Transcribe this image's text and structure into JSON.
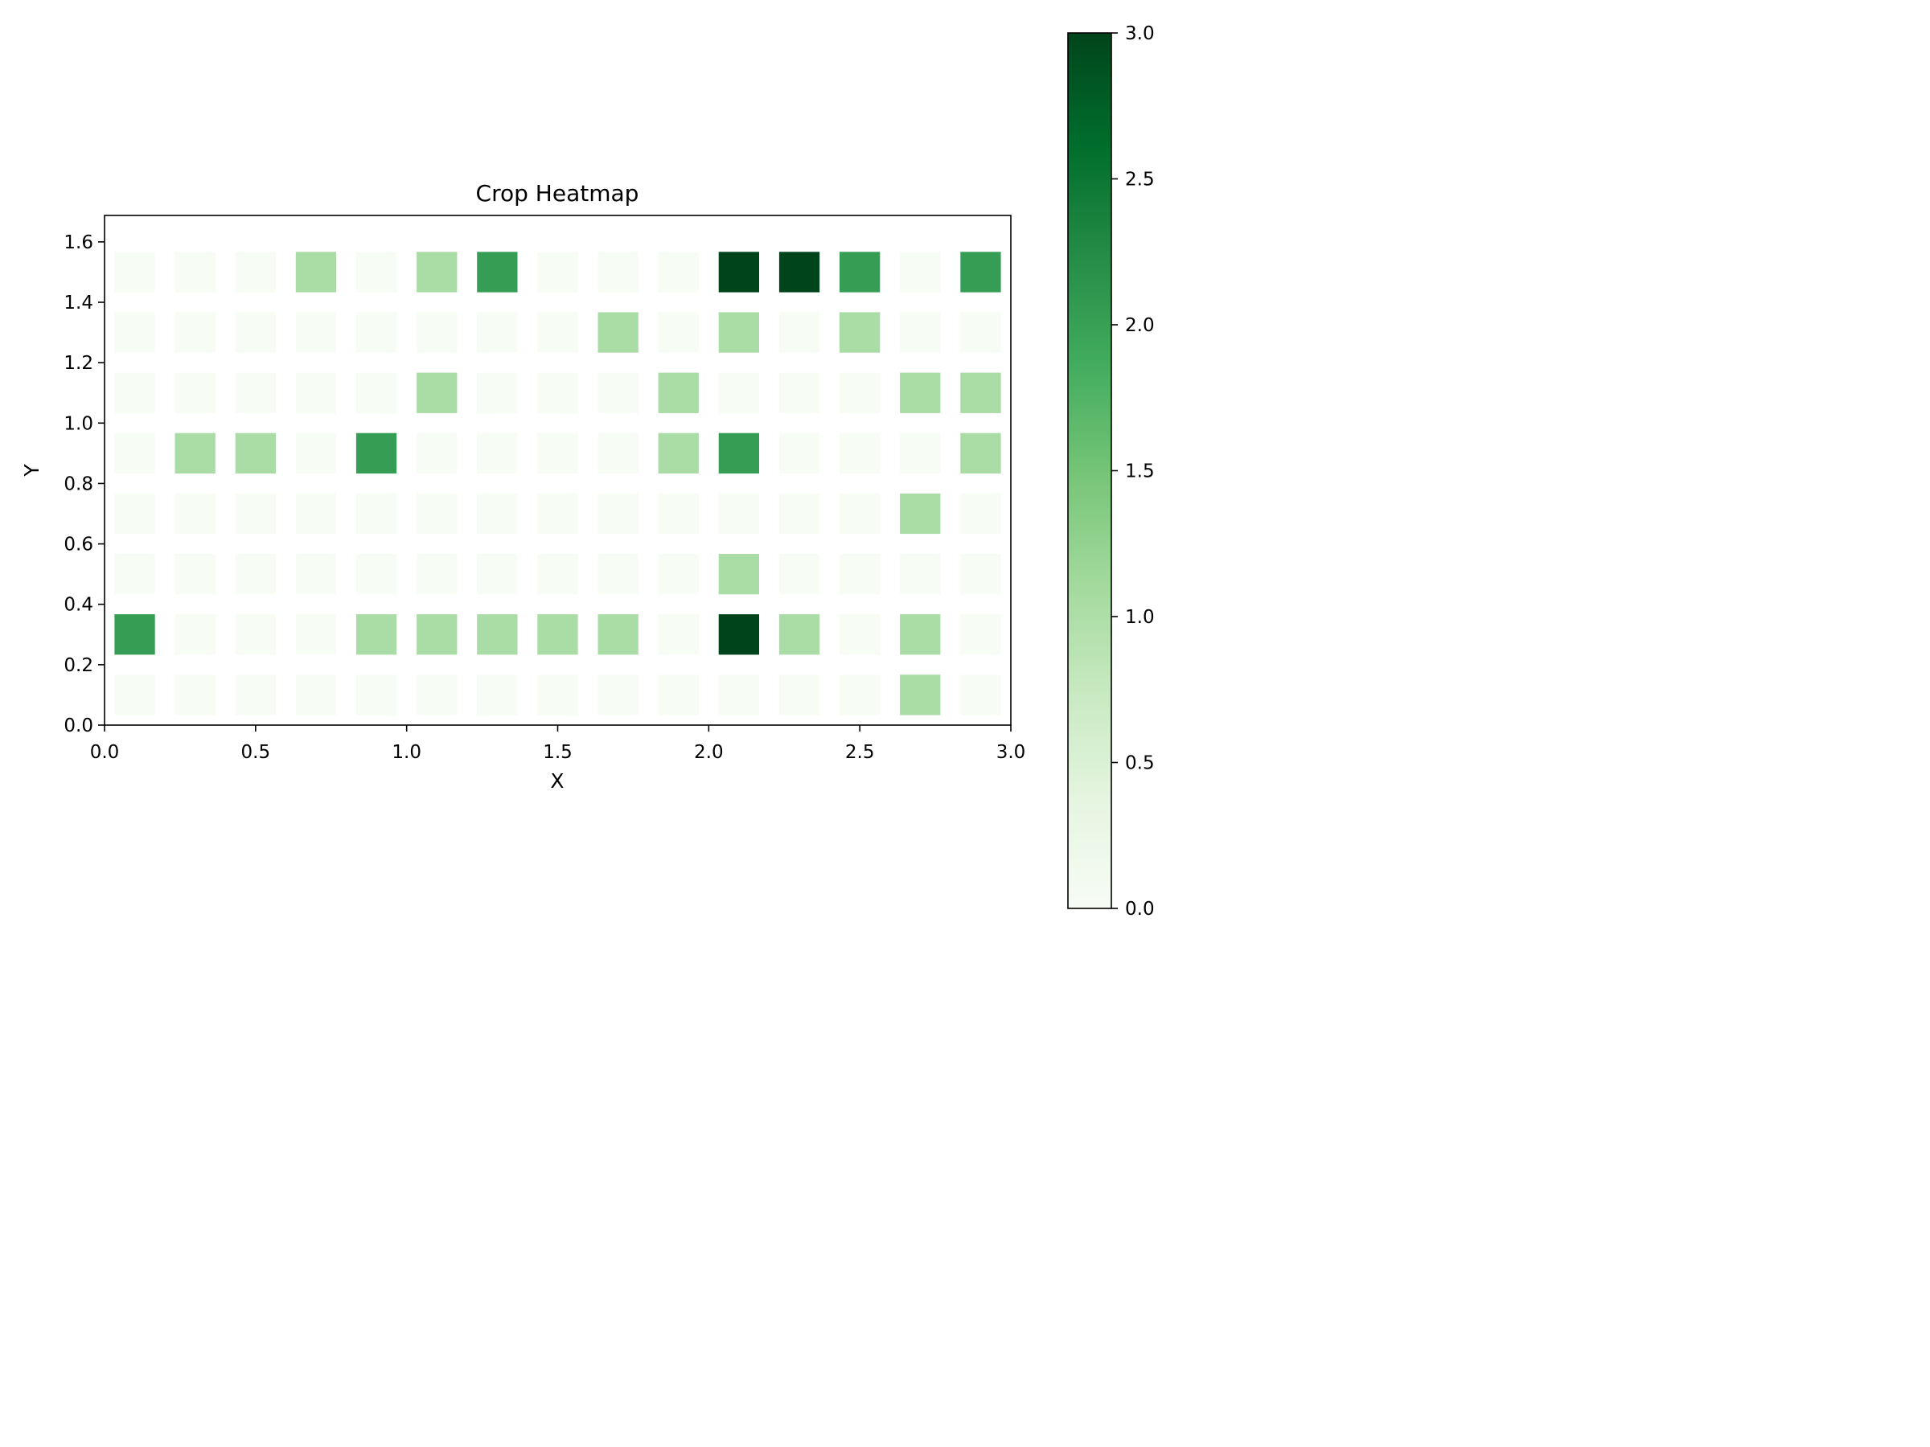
{
  "chart_data": {
    "type": "heatmap",
    "title": "Crop Heatmap",
    "xlabel": "X",
    "ylabel": "Y",
    "xlim": [
      0.0,
      3.0
    ],
    "ylim": [
      0.0,
      1.6875
    ],
    "x_ticks": [
      "0.0",
      "0.5",
      "1.0",
      "1.5",
      "2.0",
      "2.5",
      "3.0"
    ],
    "y_ticks": [
      "0.0",
      "0.2",
      "0.4",
      "0.6",
      "0.8",
      "1.0",
      "1.2",
      "1.4",
      "1.6"
    ],
    "x": [
      0.1,
      0.3,
      0.5,
      0.7,
      0.9,
      1.1,
      1.3,
      1.5,
      1.7,
      1.9,
      2.1,
      2.3,
      2.5,
      2.7,
      2.9
    ],
    "y": [
      0.1,
      0.3,
      0.5,
      0.7,
      0.9,
      1.1,
      1.3,
      1.5
    ],
    "values": [
      [
        0,
        0,
        0,
        0,
        0,
        0,
        0,
        0,
        0,
        0,
        0,
        0,
        0,
        1,
        0
      ],
      [
        2,
        0,
        0,
        0,
        1,
        1,
        1,
        1,
        1,
        0,
        3,
        1,
        0,
        1,
        0
      ],
      [
        0,
        0,
        0,
        0,
        0,
        0,
        0,
        0,
        0,
        0,
        1,
        0,
        0,
        0,
        0
      ],
      [
        0,
        0,
        0,
        0,
        0,
        0,
        0,
        0,
        0,
        0,
        0,
        0,
        0,
        1,
        0
      ],
      [
        0,
        1,
        1,
        0,
        2,
        0,
        0,
        0,
        0,
        1,
        2,
        0,
        0,
        0,
        1
      ],
      [
        0,
        0,
        0,
        0,
        0,
        1,
        0,
        0,
        0,
        1,
        0,
        0,
        0,
        1,
        1
      ],
      [
        0,
        0,
        0,
        0,
        0,
        0,
        0,
        0,
        1,
        0,
        1,
        0,
        1,
        0,
        0
      ],
      [
        0,
        0,
        0,
        1,
        0,
        1,
        2,
        0,
        0,
        0,
        3,
        3,
        2,
        0,
        2
      ]
    ],
    "colormap": "Greens",
    "colorbar": {
      "range": [
        0.0,
        3.0
      ],
      "ticks": [
        "0.0",
        "0.5",
        "1.0",
        "1.5",
        "2.0",
        "2.5",
        "3.0"
      ]
    },
    "grid": false,
    "colors": {
      "level_0": "#f7fcf5",
      "level_1": "#a9dda5",
      "level_2": "#369e54",
      "level_3": "#00441b"
    }
  }
}
